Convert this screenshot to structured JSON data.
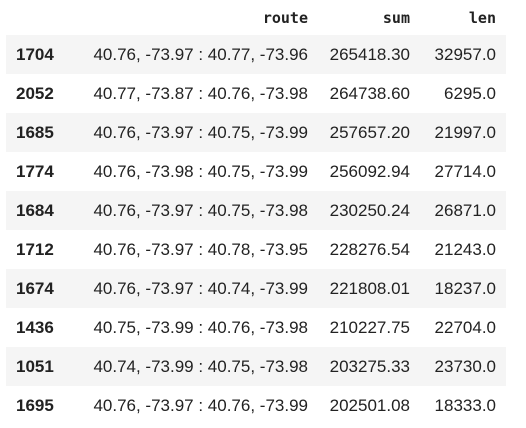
{
  "table": {
    "columns": [
      "route",
      "sum",
      "len"
    ],
    "rows": [
      {
        "index": "1704",
        "route": "40.76, -73.97 : 40.77, -73.96",
        "sum": "265418.30",
        "len": "32957.0"
      },
      {
        "index": "2052",
        "route": "40.77, -73.87 : 40.76, -73.98",
        "sum": "264738.60",
        "len": "6295.0"
      },
      {
        "index": "1685",
        "route": "40.76, -73.97 : 40.75, -73.99",
        "sum": "257657.20",
        "len": "21997.0"
      },
      {
        "index": "1774",
        "route": "40.76, -73.98 : 40.75, -73.99",
        "sum": "256092.94",
        "len": "27714.0"
      },
      {
        "index": "1684",
        "route": "40.76, -73.97 : 40.75, -73.98",
        "sum": "230250.24",
        "len": "26871.0"
      },
      {
        "index": "1712",
        "route": "40.76, -73.97 : 40.78, -73.95",
        "sum": "228276.54",
        "len": "21243.0"
      },
      {
        "index": "1674",
        "route": "40.76, -73.97 : 40.74, -73.99",
        "sum": "221808.01",
        "len": "18237.0"
      },
      {
        "index": "1436",
        "route": "40.75, -73.99 : 40.76, -73.98",
        "sum": "210227.75",
        "len": "22704.0"
      },
      {
        "index": "1051",
        "route": "40.74, -73.99 : 40.75, -73.98",
        "sum": "203275.33",
        "len": "23730.0"
      },
      {
        "index": "1695",
        "route": "40.76, -73.97 : 40.76, -73.99",
        "sum": "202501.08",
        "len": "18333.0"
      }
    ]
  }
}
